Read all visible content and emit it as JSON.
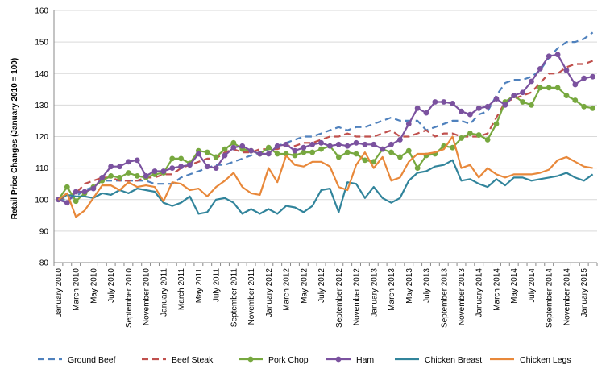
{
  "chart_data": {
    "type": "line",
    "ylabel": "Retail Price Changes (January 2010 = 100)",
    "ylim": [
      80,
      160
    ],
    "yticks": [
      80,
      90,
      100,
      110,
      120,
      130,
      140,
      150,
      160
    ],
    "grid": "horizontal",
    "legend_position": "bottom",
    "x": [
      "January 2010",
      "February 2010",
      "March 2010",
      "April 2010",
      "May 2010",
      "June 2010",
      "July 2010",
      "August 2010",
      "September 2010",
      "October 2010",
      "November 2010",
      "December 2010",
      "January 2011",
      "February 2011",
      "March 2011",
      "April 2011",
      "May 2011",
      "June 2011",
      "July 2011",
      "August 2011",
      "September 2011",
      "October 2011",
      "November 2011",
      "December 2011",
      "January 2012",
      "February 2012",
      "March 2012",
      "April 2012",
      "May 2012",
      "June 2012",
      "July 2012",
      "August 2012",
      "September 2012",
      "October 2012",
      "November 2012",
      "December 2012",
      "January 2013",
      "February 2013",
      "March 2013",
      "April 2013",
      "May 2013",
      "June 2013",
      "July 2013",
      "August 2013",
      "September 2013",
      "October 2013",
      "November 2013",
      "December 2013",
      "January 2014",
      "February 2014",
      "March 2014",
      "April 2014",
      "May 2014",
      "June 2014",
      "July 2014",
      "August 2014",
      "September 2014",
      "October 2014",
      "November 2014",
      "December 2014",
      "January 2015",
      "February 2015"
    ],
    "x_tick_labels": [
      "January 2010",
      "March 2010",
      "May 2010",
      "July 2010",
      "September 2010",
      "November 2010",
      "January 2011",
      "March 2011",
      "May 2011",
      "July 2011",
      "September 2011",
      "November 2011",
      "January 2012",
      "March 2012",
      "May 2012",
      "July 2012",
      "September 2012",
      "November 2012",
      "January 2013",
      "March 2013",
      "May 2013",
      "July 2013",
      "September 2013",
      "November 2013",
      "January 2014",
      "March 2014",
      "May 2014",
      "July 2014",
      "September 2014",
      "November 2014",
      "January 2015"
    ],
    "series": [
      {
        "name": "Ground Beef",
        "color": "#4F81BD",
        "style": "dashed",
        "marker": "none",
        "values": [
          100,
          100,
          101,
          103,
          104,
          106,
          106,
          106,
          106,
          106,
          106,
          105,
          105,
          105,
          107,
          108,
          109,
          110,
          111,
          111,
          112,
          113,
          114,
          115,
          116,
          117,
          118,
          119,
          120,
          120,
          121,
          122,
          123,
          122,
          123,
          123,
          124,
          125,
          126,
          125,
          125,
          125,
          122,
          123,
          124,
          125,
          125,
          124,
          127,
          128,
          133,
          137,
          138,
          138,
          139,
          141,
          145,
          148,
          150,
          150,
          151,
          153
        ]
      },
      {
        "name": "Beef Steak",
        "color": "#C0504D",
        "style": "dashed",
        "marker": "none",
        "values": [
          100,
          101,
          102,
          105,
          106,
          107,
          107,
          106,
          106,
          106,
          107,
          107,
          108,
          108,
          110,
          111,
          112,
          113,
          113,
          115,
          116,
          115,
          115,
          116,
          116,
          116,
          117,
          117,
          118,
          118,
          119,
          120,
          120,
          121,
          120,
          120,
          120,
          121,
          122,
          120,
          120,
          121,
          122,
          120,
          121,
          121,
          120,
          120,
          120,
          121,
          126,
          131,
          132,
          133,
          134,
          137,
          140,
          140,
          142,
          143,
          143,
          144
        ]
      },
      {
        "name": "Pork Chop",
        "color": "#77A83F",
        "style": "solid",
        "marker": "circle",
        "values": [
          100,
          104,
          99.5,
          102,
          104,
          106,
          107.5,
          107,
          108.5,
          107.5,
          107,
          108,
          108.5,
          113,
          113,
          111.5,
          115.5,
          115,
          113.5,
          116,
          118,
          116,
          115.5,
          114.5,
          116.5,
          114.5,
          114.5,
          114,
          115,
          115,
          116,
          117,
          113.5,
          115,
          114.5,
          112.5,
          112,
          116,
          115,
          113.5,
          115.5,
          110,
          114,
          114.5,
          117,
          116.5,
          119.5,
          121,
          120.5,
          119,
          124,
          131,
          133,
          131,
          130,
          135.5,
          135.5,
          135.5,
          133,
          131.5,
          129.5,
          129
        ]
      },
      {
        "name": "Ham",
        "color": "#7B529F",
        "style": "solid",
        "marker": "circle",
        "values": [
          100,
          99,
          102.5,
          102.5,
          103.5,
          107,
          110.5,
          110.5,
          112,
          112.5,
          107.5,
          109,
          109,
          110,
          110.5,
          111,
          114.5,
          110.5,
          110,
          114,
          116.5,
          117,
          115.5,
          114.5,
          114.5,
          117,
          117.5,
          115.5,
          116.5,
          117.5,
          118,
          117,
          117.5,
          117,
          118,
          117.5,
          117.5,
          116,
          117.5,
          119,
          124,
          129,
          127.5,
          131,
          131,
          130.5,
          128,
          127,
          129,
          129.5,
          132,
          130,
          133,
          134,
          137.5,
          141.5,
          145.5,
          146,
          141,
          136.5,
          138.5,
          139
        ]
      },
      {
        "name": "Chicken Breast",
        "color": "#31849B",
        "style": "solid",
        "marker": "none",
        "values": [
          100,
          101.5,
          101,
          101,
          100.5,
          102,
          101.5,
          103,
          102,
          103.5,
          103,
          102.5,
          99,
          98,
          99,
          101,
          95.5,
          96,
          100,
          100.5,
          99,
          95.5,
          97,
          95.5,
          97,
          95.5,
          98,
          97.5,
          96,
          98,
          103,
          103.5,
          96,
          105.5,
          105,
          100.5,
          104,
          100.5,
          99,
          100.5,
          106,
          108.5,
          109,
          110.5,
          111,
          112.5,
          106,
          106.5,
          105,
          104,
          106.5,
          104.5,
          107,
          107,
          106,
          106.5,
          107,
          107.5,
          108.5,
          107,
          106,
          108
        ]
      },
      {
        "name": "Chicken Legs",
        "color": "#E8883A",
        "style": "solid",
        "marker": "none",
        "values": [
          100,
          102,
          94.5,
          96.5,
          100.5,
          104.5,
          104.5,
          103,
          105.5,
          104,
          104.5,
          104,
          99.5,
          105.5,
          105,
          103,
          103.5,
          101,
          104,
          106,
          108.5,
          104,
          102,
          101.5,
          110,
          105.5,
          114,
          111,
          110.5,
          112,
          112,
          110.5,
          104,
          103,
          111,
          115,
          110,
          113.5,
          106,
          107,
          112,
          114.5,
          114.5,
          115,
          116,
          120,
          110,
          111,
          107,
          110,
          108,
          107,
          108,
          108,
          108,
          108.5,
          109.5,
          112.5,
          113.5,
          112,
          110.5,
          110
        ]
      }
    ]
  }
}
